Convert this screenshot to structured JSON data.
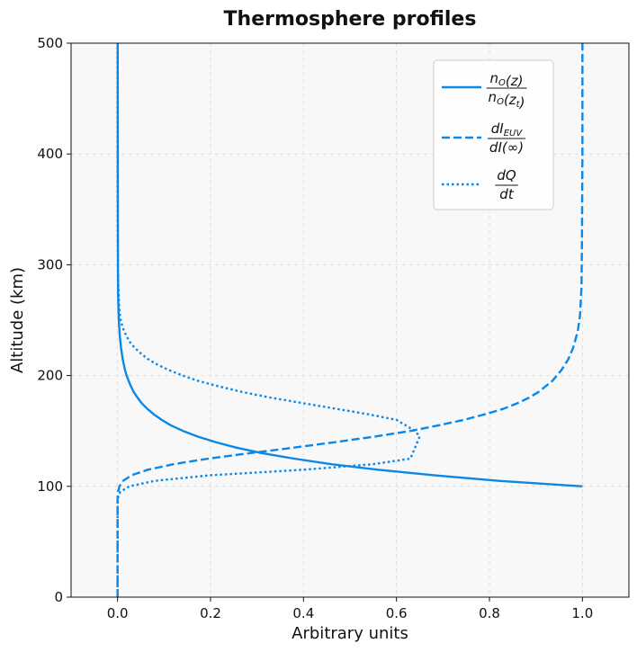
{
  "chart_data": {
    "type": "line",
    "title": "Thermosphere profiles",
    "xlabel": "Arbitrary units",
    "ylabel": "Altitude (km)",
    "xlim": [
      -0.1,
      1.1
    ],
    "ylim": [
      0,
      500
    ],
    "xticks": [
      0.0,
      0.2,
      0.4,
      0.6,
      0.8,
      1.0
    ],
    "xtick_labels": [
      "0.0",
      "0.2",
      "0.4",
      "0.6",
      "0.8",
      "1.0"
    ],
    "yticks": [
      0,
      100,
      200,
      300,
      400,
      500
    ],
    "ytick_labels": [
      "0",
      "100",
      "200",
      "300",
      "400",
      "500"
    ],
    "grid": true,
    "legend_position": "top-right",
    "colors": {
      "line": "#0A88E8",
      "plot_bg": "#F8F8F8"
    },
    "series": [
      {
        "name": "n_O(z) / n_O(z_t)",
        "legend": {
          "numerator": "n",
          "numerator_sub": "O",
          "numerator_arg": "(z)",
          "denominator": "n",
          "denominator_sub": "O",
          "denominator_arg": "(z",
          "denominator_arg_sub": "t",
          "denominator_arg_end": ")"
        },
        "style": "solid",
        "x": [
          1.0,
          0.82,
          0.68,
          0.56,
          0.46,
          0.38,
          0.31,
          0.255,
          0.21,
          0.172,
          0.141,
          0.115,
          0.095,
          0.078,
          0.064,
          0.052,
          0.043,
          0.035,
          0.029,
          0.024,
          0.0195,
          0.016,
          0.011,
          0.0075,
          0.005,
          0.0034,
          0.0023,
          0.0016,
          0.0011,
          0.0008,
          0.0005,
          0.0003
        ],
        "y": [
          100,
          105,
          110,
          115,
          120,
          125,
          130,
          135,
          140,
          145,
          150,
          155,
          160,
          165,
          170,
          175,
          180,
          185,
          190,
          195,
          200,
          205,
          215,
          225,
          235,
          245,
          255,
          265,
          275,
          300,
          400,
          500
        ]
      },
      {
        "name": "dI_EUV / dI(∞)",
        "legend": {
          "numerator": "dI",
          "numerator_sub": "EUV",
          "numerator_arg": "",
          "denominator": "dI(∞)",
          "denominator_sub": "",
          "denominator_arg": "",
          "denominator_arg_sub": "",
          "denominator_arg_end": ""
        },
        "style": "dashed",
        "x": [
          0.0,
          0.0,
          0.0,
          0.001,
          0.004,
          0.012,
          0.03,
          0.065,
          0.12,
          0.195,
          0.285,
          0.38,
          0.47,
          0.555,
          0.63,
          0.69,
          0.745,
          0.79,
          0.83,
          0.86,
          0.885,
          0.905,
          0.935,
          0.955,
          0.97,
          0.98,
          0.99,
          0.995,
          0.998,
          0.999,
          1.0,
          1.0
        ],
        "y": [
          0,
          80,
          90,
          95,
          100,
          105,
          110,
          115,
          120,
          125,
          130,
          135,
          140,
          145,
          150,
          155,
          160,
          165,
          170,
          175,
          180,
          185,
          195,
          205,
          215,
          225,
          240,
          255,
          280,
          320,
          400,
          500
        ]
      },
      {
        "name": "dQ / dt",
        "legend": {
          "numerator": "dQ",
          "numerator_sub": "",
          "numerator_arg": "",
          "denominator": "dt",
          "denominator_sub": "",
          "denominator_arg": "",
          "denominator_arg_sub": "",
          "denominator_arg_end": ""
        },
        "style": "dotted",
        "x": [
          0.0,
          0.0,
          0.001,
          0.006,
          0.025,
          0.08,
          0.2,
          0.4,
          0.55,
          0.63,
          0.65,
          0.64,
          0.6,
          0.54,
          0.47,
          0.4,
          0.33,
          0.27,
          0.22,
          0.175,
          0.14,
          0.11,
          0.085,
          0.065,
          0.05,
          0.037,
          0.027,
          0.02,
          0.014,
          0.01,
          0.007,
          0.005,
          0.003,
          0.001,
          0.0,
          0.0
        ],
        "y": [
          0,
          80,
          90,
          95,
          100,
          105,
          110,
          115,
          120,
          125,
          145,
          150,
          160,
          165,
          170,
          175,
          180,
          185,
          190,
          195,
          200,
          205,
          210,
          215,
          220,
          225,
          230,
          235,
          240,
          245,
          250,
          255,
          265,
          290,
          350,
          500
        ]
      }
    ]
  }
}
